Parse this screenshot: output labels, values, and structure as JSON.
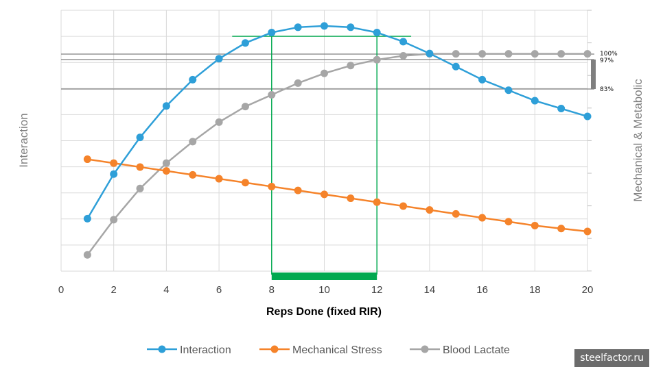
{
  "chart_data": {
    "type": "line",
    "xlabel": "Reps Done (fixed RIR)",
    "ylabel_left": "Interaction",
    "ylabel_right": "Mechanical & Metabolic",
    "xlim": [
      0,
      20
    ],
    "x_ticks": [
      0,
      2,
      4,
      6,
      8,
      10,
      12,
      14,
      16,
      18,
      20
    ],
    "grid": true,
    "legend_position": "bottom",
    "x": [
      1,
      2,
      3,
      4,
      5,
      6,
      7,
      8,
      9,
      10,
      11,
      12,
      13,
      14,
      15,
      16,
      17,
      18,
      19,
      20
    ],
    "series": [
      {
        "name": "Interaction",
        "color": "#2e9fd8",
        "axis": "left",
        "values": [
          20,
          37,
          51,
          63,
          73,
          81,
          87,
          91,
          93,
          93.5,
          93,
          91,
          87.5,
          83,
          78,
          73,
          69,
          65,
          62,
          59
        ]
      },
      {
        "name": "Mechanical Stress",
        "color": "#f5832a",
        "axis": "right",
        "values": [
          37,
          35,
          33,
          31,
          29,
          27,
          25,
          23,
          21,
          19,
          17,
          15,
          13,
          11,
          9,
          7,
          5,
          3,
          1.5,
          0
        ]
      },
      {
        "name": "Blood Lactate",
        "color": "#a6a6a6",
        "axis": "right",
        "values": [
          -12,
          6,
          22,
          35,
          46,
          56,
          64,
          70,
          76,
          81,
          85,
          88,
          90,
          91,
          91,
          91,
          91,
          91,
          91,
          91
        ]
      }
    ],
    "reference_lines": [
      {
        "label": "100%",
        "color": "#7f7f7f"
      },
      {
        "label": "97%",
        "color": "#7f7f7f"
      },
      {
        "label": "83%",
        "color": "#7f7f7f"
      }
    ],
    "highlight": {
      "x_range": [
        8,
        12
      ],
      "color": "#00a84f"
    }
  },
  "watermark": "steelfactor.ru"
}
